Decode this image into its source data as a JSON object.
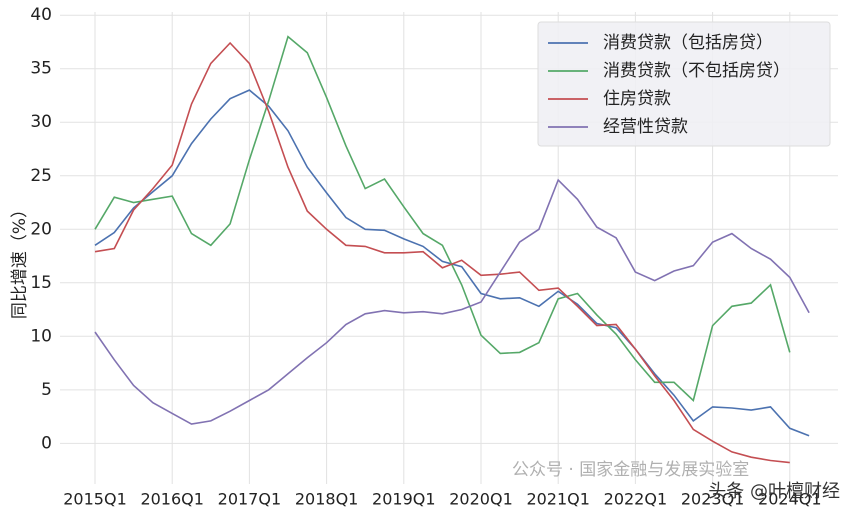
{
  "chart_data": {
    "type": "line",
    "y_label": "同比增速（%）",
    "categories": [
      "2015Q1",
      null,
      null,
      null,
      "2016Q1",
      null,
      null,
      null,
      "2017Q1",
      null,
      null,
      null,
      "2018Q1",
      null,
      null,
      null,
      "2019Q1",
      null,
      null,
      null,
      "2020Q1",
      null,
      null,
      null,
      "2021Q1",
      null,
      null,
      null,
      "2022Q1",
      null,
      null,
      null,
      "2023Q1",
      null,
      null,
      null,
      "2024Q1",
      null
    ],
    "series": [
      {
        "name": "消费贷款（包括房贷）",
        "color": "#4c72b0",
        "values": [
          18.5,
          19.7,
          22,
          23.5,
          25,
          28,
          30.3,
          32.2,
          33,
          31.5,
          29.2,
          25.8,
          23.4,
          21.1,
          20,
          19.9,
          19.1,
          18.4,
          17,
          16.5,
          14,
          13.5,
          13.6,
          12.8,
          14.2,
          13,
          11.2,
          10.8,
          8.8,
          6.5,
          4.5,
          2.1,
          3.4,
          3.3,
          3.1,
          3.4,
          1.4,
          0.7
        ]
      },
      {
        "name": "消费贷款（不包括房贷）",
        "color": "#55a868",
        "values": [
          20,
          23,
          22.5,
          22.8,
          23.1,
          19.6,
          18.5,
          20.5,
          26.5,
          32,
          38,
          36.5,
          32.3,
          27.8,
          23.8,
          24.7,
          22.1,
          19.6,
          18.5,
          14.8,
          10.1,
          8.4,
          8.5,
          9.4,
          13.5,
          14,
          12,
          10.2,
          7.8,
          5.7,
          5.7,
          4,
          11,
          12.8,
          13.1,
          14.8,
          8.5,
          null
        ]
      },
      {
        "name": "住房贷款",
        "color": "#c44e52",
        "values": [
          17.9,
          18.2,
          21.8,
          23.8,
          26,
          31.7,
          35.5,
          37.4,
          35.5,
          31,
          25.8,
          21.7,
          20,
          18.5,
          18.4,
          17.8,
          17.8,
          17.9,
          16.4,
          17.1,
          15.7,
          15.8,
          16,
          14.3,
          14.5,
          12.8,
          11,
          11.1,
          8.8,
          6.3,
          4,
          1.3,
          0.2,
          -0.8,
          -1.3,
          -1.6,
          -1.8,
          null
        ]
      },
      {
        "name": "经营性贷款",
        "color": "#8172b2",
        "values": [
          10.4,
          7.8,
          5.4,
          3.8,
          2.8,
          1.8,
          2.1,
          3,
          4,
          5,
          6.5,
          8,
          9.4,
          11.1,
          12.1,
          12.4,
          12.2,
          12.3,
          12.1,
          12.5,
          13.2,
          16,
          18.8,
          20,
          24.6,
          22.8,
          20.2,
          19.2,
          16,
          15.2,
          16.1,
          16.6,
          18.8,
          19.6,
          18.2,
          17.2,
          15.5,
          12.2
        ]
      }
    ],
    "ylim": [
      -3.8,
      40.3
    ],
    "yticks": [
      0,
      5,
      10,
      15,
      20,
      25,
      30,
      35,
      40
    ],
    "grid": true,
    "legend": "upper right",
    "annotations": [
      "公众号 · 国家金融与发展实验室",
      "头条 @叶檀财经"
    ]
  }
}
